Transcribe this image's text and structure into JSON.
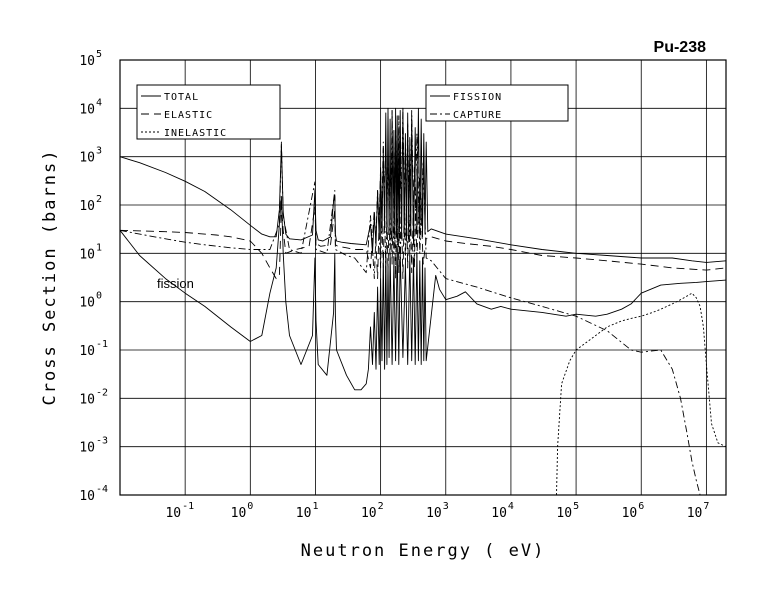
{
  "chart_data": {
    "type": "line",
    "title": "Pu-238",
    "xlabel": "Neutron Energy ( eV)",
    "ylabel": "Cross Section (barns)",
    "xscale": "log",
    "yscale": "log",
    "xlim": [
      0.01,
      20000000
    ],
    "ylim": [
      0.0001,
      100000
    ],
    "grid": true,
    "x_ticks": [
      {
        "base": "10",
        "exp": "-1",
        "value": 0.1
      },
      {
        "base": "10",
        "exp": "0",
        "value": 1
      },
      {
        "base": "10",
        "exp": "1",
        "value": 10
      },
      {
        "base": "10",
        "exp": "2",
        "value": 100
      },
      {
        "base": "10",
        "exp": "3",
        "value": 1000
      },
      {
        "base": "10",
        "exp": "4",
        "value": 10000
      },
      {
        "base": "10",
        "exp": "5",
        "value": 100000
      },
      {
        "base": "10",
        "exp": "6",
        "value": 1000000
      },
      {
        "base": "10",
        "exp": "7",
        "value": 10000000
      }
    ],
    "y_ticks": [
      {
        "base": "10",
        "exp": "-4",
        "value": 0.0001
      },
      {
        "base": "10",
        "exp": "-3",
        "value": 0.001
      },
      {
        "base": "10",
        "exp": "-2",
        "value": 0.01
      },
      {
        "base": "10",
        "exp": "-1",
        "value": 0.1
      },
      {
        "base": "10",
        "exp": "0",
        "value": 1
      },
      {
        "base": "10",
        "exp": "1",
        "value": 10
      },
      {
        "base": "10",
        "exp": "2",
        "value": 100
      },
      {
        "base": "10",
        "exp": "3",
        "value": 1000
      },
      {
        "base": "10",
        "exp": "4",
        "value": 10000
      },
      {
        "base": "10",
        "exp": "5",
        "value": 100000
      }
    ],
    "legend": [
      {
        "group": "left",
        "label": "TOTAL",
        "dash": "solid"
      },
      {
        "group": "left",
        "label": "ELASTIC",
        "dash": "dashed"
      },
      {
        "group": "left",
        "label": "INELASTIC",
        "dash": "dotted"
      },
      {
        "group": "right",
        "label": "FISSION",
        "dash": "solid"
      },
      {
        "group": "right",
        "label": "CAPTURE",
        "dash": "dashdot"
      }
    ],
    "annotations": [
      {
        "text": "fission",
        "x": 0.3,
        "y": 2.5
      }
    ],
    "series": [
      {
        "name": "TOTAL",
        "dash": "solid",
        "x": [
          0.01,
          0.02,
          0.05,
          0.1,
          0.2,
          0.5,
          1,
          1.5,
          2,
          2.5,
          2.8,
          3,
          3.2,
          3.5,
          4,
          6,
          9,
          9.8,
          10.2,
          11,
          13,
          17,
          19,
          19.8,
          20.2,
          21,
          25,
          35,
          60,
          70,
          75,
          80,
          85,
          90,
          95,
          100,
          105,
          110,
          115,
          120,
          125,
          130,
          135,
          140,
          145,
          150,
          155,
          160,
          165,
          170,
          175,
          180,
          185,
          190,
          195,
          200,
          210,
          220,
          230,
          240,
          250,
          260,
          270,
          280,
          290,
          300,
          320,
          340,
          360,
          380,
          400,
          420,
          440,
          460,
          480,
          500,
          530,
          560,
          600,
          1000,
          3000,
          10000,
          30000,
          100000,
          300000,
          1000000,
          3000000,
          6000000,
          10000000,
          20000000
        ],
        "y": [
          1000,
          750,
          470,
          310,
          190,
          80,
          38,
          25,
          22,
          22,
          80,
          1800,
          70,
          25,
          20,
          19,
          24,
          200,
          30,
          19,
          18,
          22,
          120,
          150,
          25,
          18,
          17,
          16,
          15,
          40,
          10,
          60,
          15,
          200,
          20,
          600,
          25,
          1500,
          30,
          8000,
          20,
          10000,
          25,
          6000,
          18,
          9000,
          22,
          3500,
          20,
          10000,
          25,
          7000,
          15,
          4000,
          28,
          9000,
          20,
          10000,
          22,
          3000,
          18,
          8000,
          20,
          2500,
          25,
          7000,
          15,
          4000,
          25,
          10000,
          20,
          6000,
          22,
          3000,
          25,
          2000,
          28,
          30,
          32,
          25,
          20,
          15,
          12,
          10,
          9,
          8,
          8,
          7,
          6.5,
          7
        ]
      },
      {
        "name": "ELASTIC",
        "dash": "dashed",
        "x": [
          0.01,
          0.05,
          0.1,
          0.3,
          0.5,
          1,
          1.5,
          2,
          2.5,
          2.8,
          3,
          3.2,
          3.5,
          5,
          8,
          9.8,
          10.2,
          12,
          17,
          19.8,
          20.2,
          22,
          30,
          40,
          60,
          70,
          80,
          90,
          100,
          110,
          120,
          130,
          140,
          150,
          160,
          170,
          180,
          190,
          200,
          220,
          240,
          260,
          280,
          300,
          330,
          360,
          400,
          450,
          500,
          550,
          600,
          1000,
          2000,
          5000,
          10000,
          30000,
          100000,
          300000,
          1000000,
          3000000,
          10000000,
          20000000
        ],
        "y": [
          30,
          28,
          27,
          24,
          22,
          18,
          10,
          5,
          3,
          3.5,
          100,
          30,
          10,
          12,
          14,
          90,
          16,
          14,
          15,
          80,
          15,
          14,
          13,
          12,
          12,
          5,
          80,
          3,
          600,
          5,
          2000,
          4,
          800,
          6,
          500,
          3,
          1500,
          4,
          900,
          3,
          1200,
          5,
          700,
          4,
          600,
          8,
          400,
          6,
          20,
          22,
          22,
          18,
          16,
          14,
          12,
          9,
          8,
          7,
          6,
          5,
          4.5,
          5
        ]
      },
      {
        "name": "INELASTIC",
        "dash": "dotted",
        "x": [
          50000,
          52000,
          60000,
          80000,
          100000,
          150000,
          200000,
          300000,
          500000,
          700000,
          1000000,
          1500000,
          2000000,
          3000000,
          4000000,
          5000000,
          6000000,
          7000000,
          8000000,
          9000000,
          10000000,
          12000000,
          15000000,
          20000000
        ],
        "y": [
          0.0001,
          0.001,
          0.02,
          0.06,
          0.1,
          0.15,
          0.2,
          0.3,
          0.4,
          0.45,
          0.5,
          0.6,
          0.7,
          0.9,
          1.1,
          1.3,
          1.5,
          1.2,
          0.8,
          0.3,
          0.05,
          0.003,
          0.0012,
          0.001
        ]
      },
      {
        "name": "FISSION",
        "dash": "solid",
        "x": [
          0.01,
          0.02,
          0.05,
          0.1,
          0.2,
          0.5,
          1,
          1.5,
          2,
          2.5,
          2.8,
          3,
          3.2,
          3.5,
          4,
          6,
          9,
          9.8,
          10.2,
          11,
          15,
          19,
          19.8,
          20.2,
          21,
          30,
          40,
          50,
          60,
          65,
          70,
          75,
          80,
          85,
          90,
          95,
          100,
          105,
          110,
          115,
          120,
          125,
          130,
          135,
          140,
          150,
          160,
          170,
          180,
          190,
          200,
          220,
          240,
          260,
          280,
          300,
          320,
          340,
          360,
          380,
          400,
          420,
          440,
          460,
          480,
          500,
          700,
          800,
          1000,
          1500,
          2000,
          3000,
          5000,
          7000,
          10000,
          30000,
          70000,
          100000,
          200000,
          300000,
          500000,
          700000,
          1000000,
          2000000,
          4000000,
          7000000,
          10000000,
          20000000
        ],
        "y": [
          30,
          9,
          3,
          1.5,
          0.8,
          0.3,
          0.15,
          0.2,
          1.5,
          5,
          40,
          150,
          10,
          1,
          0.2,
          0.05,
          0.2,
          8,
          0.4,
          0.05,
          0.03,
          0.6,
          10,
          0.5,
          0.1,
          0.03,
          0.015,
          0.015,
          0.02,
          0.04,
          0.3,
          0.05,
          0.6,
          0.04,
          2,
          0.05,
          3,
          0.06,
          8,
          0.04,
          12,
          0.05,
          6,
          0.07,
          10,
          0.05,
          7,
          0.06,
          14,
          0.05,
          10,
          0.07,
          6,
          0.05,
          9,
          0.06,
          8,
          0.05,
          10,
          0.06,
          7,
          0.05,
          8,
          0.06,
          5,
          0.06,
          3.5,
          1.8,
          1.1,
          1.3,
          1.6,
          0.9,
          0.7,
          0.8,
          0.7,
          0.6,
          0.5,
          0.55,
          0.5,
          0.55,
          0.7,
          0.9,
          1.5,
          2.2,
          2.4,
          2.5,
          2.6,
          2.8
        ]
      },
      {
        "name": "CAPTURE",
        "dash": "dashdot",
        "x": [
          0.01,
          0.02,
          0.05,
          0.1,
          0.2,
          0.5,
          1,
          2,
          2.8,
          3,
          3.2,
          4,
          6,
          9.8,
          10.2,
          15,
          19.8,
          20.2,
          30,
          40,
          60,
          70,
          80,
          90,
          100,
          110,
          120,
          130,
          140,
          150,
          160,
          170,
          180,
          190,
          200,
          220,
          240,
          260,
          280,
          300,
          330,
          360,
          400,
          450,
          500,
          600,
          1000,
          3000,
          10000,
          30000,
          100000,
          300000,
          700000,
          1000000,
          2000000,
          3000000,
          4000000,
          5000000,
          6000000,
          7000000,
          8000000
        ],
        "y": [
          30,
          25,
          20,
          17,
          15,
          13,
          12,
          12,
          40,
          2000,
          60,
          12,
          10,
          300,
          12,
          10,
          200,
          12,
          9,
          8,
          4,
          60,
          3,
          200,
          5,
          2000,
          4,
          900,
          6,
          9000,
          5,
          4000,
          8,
          7000,
          4,
          10000,
          6,
          5000,
          8,
          9000,
          5,
          3000,
          10,
          800,
          8,
          7,
          3,
          2,
          1.2,
          0.8,
          0.5,
          0.25,
          0.1,
          0.09,
          0.1,
          0.04,
          0.01,
          0.002,
          0.0005,
          0.0002,
          0.0001
        ]
      }
    ]
  }
}
